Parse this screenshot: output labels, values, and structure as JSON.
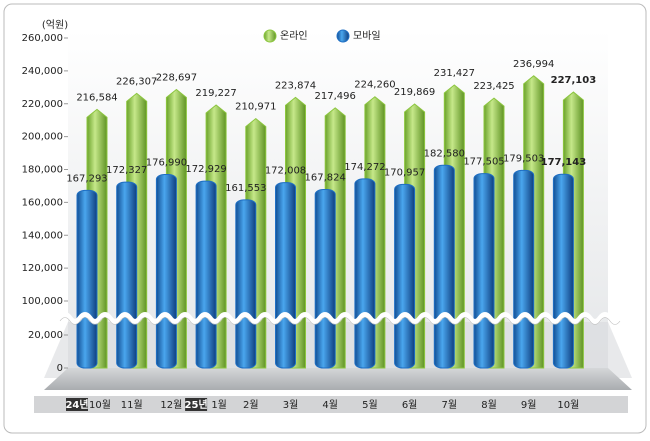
{
  "chart_data": {
    "type": "bar",
    "unit_label": "(억원)",
    "categories": [
      "10월",
      "11월",
      "12월",
      "1월",
      "2월",
      "3월",
      "4월",
      "5월",
      "6월",
      "7월",
      "8월",
      "9월",
      "10월"
    ],
    "year_markers": [
      {
        "category": 0,
        "label": "24년"
      },
      {
        "category": 3,
        "label": "25년"
      }
    ],
    "series": [
      {
        "name": "온라인",
        "color": "#8cc63f",
        "values": [
          216584,
          226307,
          228697,
          219227,
          210971,
          223874,
          217496,
          224260,
          219869,
          231427,
          223425,
          236994,
          227103
        ],
        "value_labels": [
          "216,584",
          "226,307",
          "228,697",
          "219,227",
          "210,971",
          "223,874",
          "217,496",
          "224,260",
          "219,869",
          "231,427",
          "223,425",
          "236,994",
          "227,103"
        ]
      },
      {
        "name": "모바일",
        "color": "#1f6fc4",
        "values": [
          167293,
          172327,
          176990,
          172929,
          161553,
          172008,
          167824,
          174272,
          170957,
          182580,
          177505,
          179503,
          177143
        ],
        "value_labels": [
          "167,293",
          "172,327",
          "176,990",
          "172,929",
          "161,553",
          "172,008",
          "167,824",
          "174,272",
          "170,957",
          "182,580",
          "177,505",
          "179,503",
          "177,143"
        ]
      }
    ],
    "ylim": [
      0,
      260000
    ],
    "axis_break": [
      20000,
      100000
    ],
    "yticks": [
      0,
      {
        "value": 20000,
        "label": "20,000"
      },
      {
        "value": 100000,
        "label": "100,000"
      },
      {
        "value": 120000,
        "label": "120,000"
      },
      {
        "value": 140000,
        "label": "140,000"
      },
      {
        "value": 160000,
        "label": "160,000"
      },
      {
        "value": 180000,
        "label": "180,000"
      },
      {
        "value": 200000,
        "label": "200,000"
      },
      {
        "value": 220000,
        "label": "220,000"
      },
      {
        "value": 240000,
        "label": "240,000"
      },
      {
        "value": 260000,
        "label": "260,000"
      }
    ],
    "emphasis_category": 12
  }
}
